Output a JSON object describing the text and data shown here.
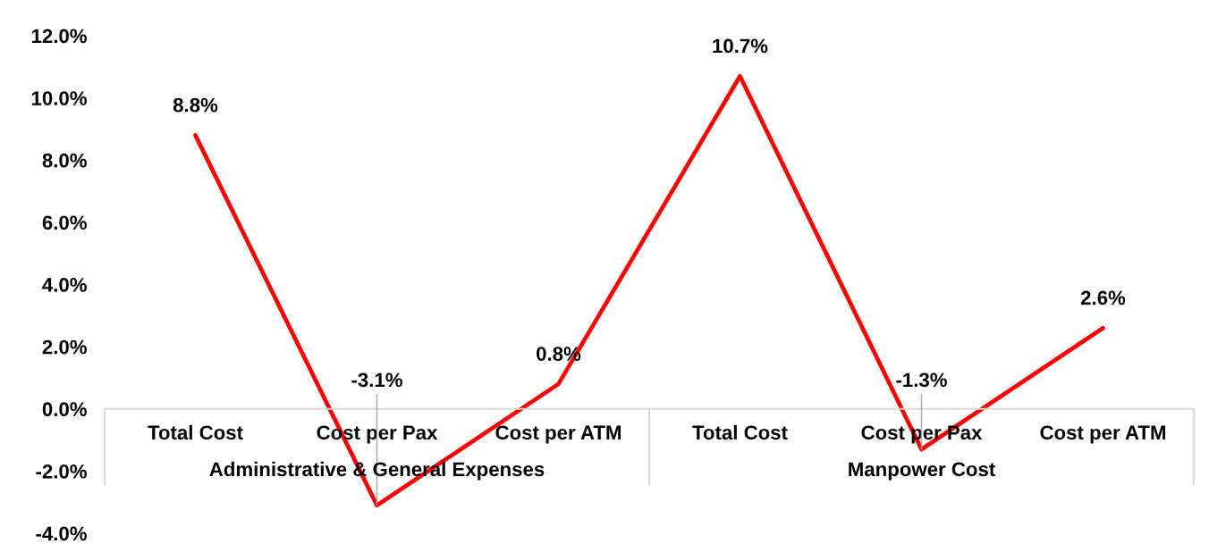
{
  "chart_data": {
    "type": "line",
    "categories": [
      "Total Cost",
      "Cost per Pax",
      "Cost per ATM",
      "Total Cost",
      "Cost per Pax",
      "Cost per ATM"
    ],
    "series": [
      {
        "color": "#ff0000",
        "values": [
          8.8,
          -3.1,
          0.8,
          10.7,
          -1.3,
          2.6
        ],
        "value_labels": [
          "8.8%",
          "-3.1%",
          "0.8%",
          "10.7%",
          "-1.3%",
          "2.6%"
        ]
      }
    ],
    "ylim": [
      -4,
      12
    ],
    "yticks": [
      {
        "value": -4,
        "label": "-4.0%"
      },
      {
        "value": -2,
        "label": "-2.0%"
      },
      {
        "value": 0,
        "label": "0.0%"
      },
      {
        "value": 2,
        "label": "2.0%"
      },
      {
        "value": 4,
        "label": "4.0%"
      },
      {
        "value": 6,
        "label": "6.0%"
      },
      {
        "value": 8,
        "label": "8.0%"
      },
      {
        "value": 10,
        "label": "10.0%"
      },
      {
        "value": 12,
        "label": "12.0%"
      }
    ],
    "line_style": "solid",
    "annotations": [
      "Administrative & General Expenses",
      "Manpower Cost"
    ]
  }
}
